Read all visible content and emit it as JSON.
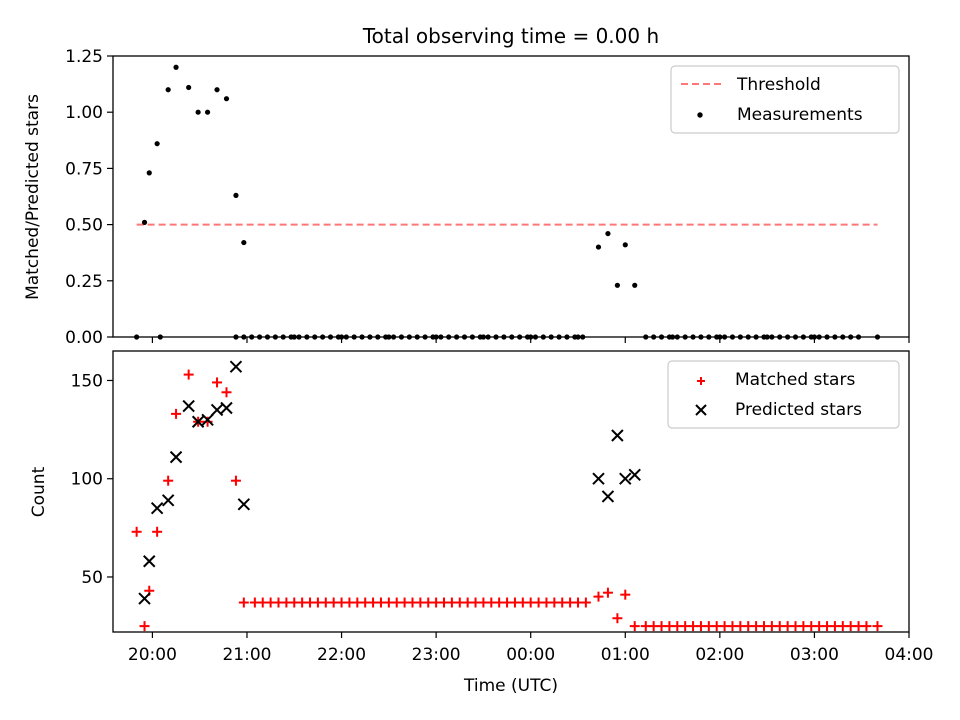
{
  "chart_data": [
    {
      "type": "scatter",
      "title": "Total observing time = 0.00 h",
      "xlabel": "",
      "ylabel": "Matched/Predicted stars",
      "x_unit": "time of day (UTC), 19:00 through 04:00 next day",
      "xlim": [
        "19:35",
        "04:00"
      ],
      "ylim": [
        0,
        1.25
      ],
      "yticks": [
        0,
        0.25,
        0.5,
        0.75,
        1.0,
        1.25
      ],
      "ytick_labels": [
        "0.00",
        "0.25",
        "0.50",
        "0.75",
        "1.00",
        "1.25"
      ],
      "legend_position": "top-right",
      "threshold": {
        "name": "Threshold",
        "value": 0.5,
        "x_start": "19:50",
        "x_end": "03:40",
        "color": "#ff7777",
        "style": "dashed"
      },
      "series": [
        {
          "name": "Measurements",
          "marker": "dot",
          "color": "#000000",
          "x": [
            "19:50",
            "19:55",
            "19:58",
            "20:03",
            "20:10",
            "20:15",
            "20:23",
            "20:29",
            "20:35",
            "20:41",
            "20:47",
            "20:53",
            "20:58",
            "20:05",
            "21:30",
            "22:00",
            "22:30",
            "23:00",
            "23:30",
            "00:00",
            "00:30",
            "00:43",
            "00:49",
            "00:55",
            "01:00",
            "01:06",
            "01:30",
            "02:00",
            "02:30",
            "03:00",
            "03:40"
          ],
          "y": [
            0,
            0.51,
            0.73,
            0.86,
            1.1,
            1.2,
            1.11,
            1.0,
            1.0,
            1.1,
            1.06,
            0.63,
            0.42,
            0.0,
            0,
            0,
            0,
            0,
            0,
            0,
            0,
            0.4,
            0.46,
            0.23,
            0.41,
            0.23,
            0,
            0,
            0,
            0,
            0
          ]
        }
      ]
    },
    {
      "type": "scatter",
      "title": "",
      "xlabel": "Time (UTC)",
      "ylabel": "Count",
      "xlim": [
        "19:35",
        "04:00"
      ],
      "ylim": [
        22,
        165
      ],
      "yticks": [
        50,
        100,
        150
      ],
      "xtick_labels": [
        "20:00",
        "21:00",
        "22:00",
        "23:00",
        "00:00",
        "01:00",
        "02:00",
        "03:00",
        "04:00"
      ],
      "legend_position": "top-right",
      "series": [
        {
          "name": "Matched stars",
          "marker": "plus",
          "color": "#ff0000",
          "x": [
            "19:50",
            "19:55",
            "19:58",
            "20:03",
            "20:10",
            "20:15",
            "20:23",
            "20:29",
            "20:35",
            "20:41",
            "20:47",
            "20:53",
            "20:58",
            "00:43",
            "00:49",
            "00:55",
            "01:00",
            "01:06",
            "03:40"
          ],
          "y": [
            73,
            25,
            43,
            73,
            99,
            133,
            153,
            129,
            129,
            149,
            144,
            99,
            37,
            40,
            42,
            29,
            41,
            25,
            25
          ]
        },
        {
          "name": "Predicted stars",
          "marker": "x",
          "color": "#000000",
          "x": [
            "19:55",
            "19:58",
            "20:03",
            "20:10",
            "20:15",
            "20:23",
            "20:29",
            "20:35",
            "20:41",
            "20:47",
            "20:53",
            "20:58",
            "00:43",
            "00:49",
            "00:55",
            "01:00",
            "01:06"
          ],
          "y": [
            39,
            58,
            85,
            89,
            111,
            137,
            129,
            130,
            135,
            136,
            157,
            87,
            100,
            91,
            122,
            100,
            102
          ]
        }
      ]
    }
  ]
}
